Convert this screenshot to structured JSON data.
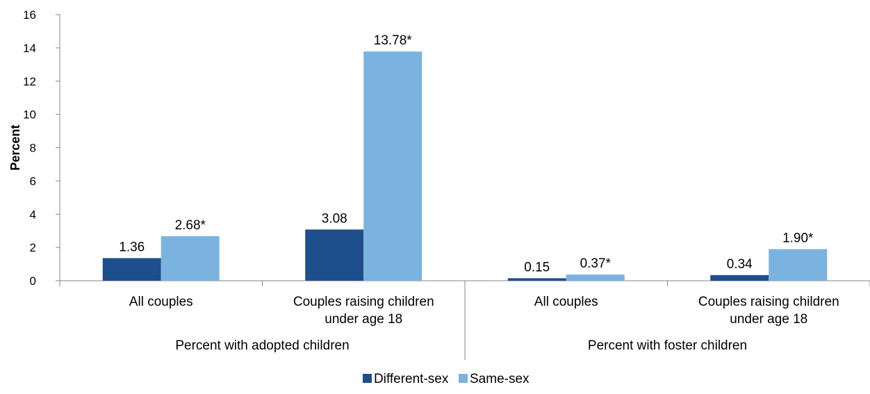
{
  "chart_data": {
    "type": "bar",
    "ylabel": "Percent",
    "ylim": [
      0,
      16
    ],
    "yticks": [
      "0",
      "2",
      "4",
      "6",
      "8",
      "10",
      "12",
      "14",
      "16"
    ],
    "groups": [
      {
        "label": "Percent with adopted children",
        "categories": [
          "All couples",
          "Couples raising children under age 18"
        ]
      },
      {
        "label": "Percent with foster children",
        "categories": [
          "All couples",
          "Couples raising children under age 18"
        ]
      }
    ],
    "category_lines": [
      [
        "All couples"
      ],
      [
        "Couples raising children",
        "under age 18"
      ],
      [
        "All couples"
      ],
      [
        "Couples raising children",
        "under age 18"
      ]
    ],
    "series": [
      {
        "name": "Different-sex",
        "color": "#1f4e8c",
        "values": [
          1.36,
          3.08,
          0.15,
          0.34
        ],
        "labels": [
          "1.36",
          "3.08",
          "0.15",
          "0.34"
        ]
      },
      {
        "name": "Same-sex",
        "color": "#7bb3e0",
        "values": [
          2.68,
          13.78,
          0.37,
          1.9
        ],
        "labels": [
          "2.68*",
          "13.78*",
          "0.37*",
          "1.90*"
        ]
      }
    ],
    "legend_position": "bottom",
    "grid": false
  }
}
